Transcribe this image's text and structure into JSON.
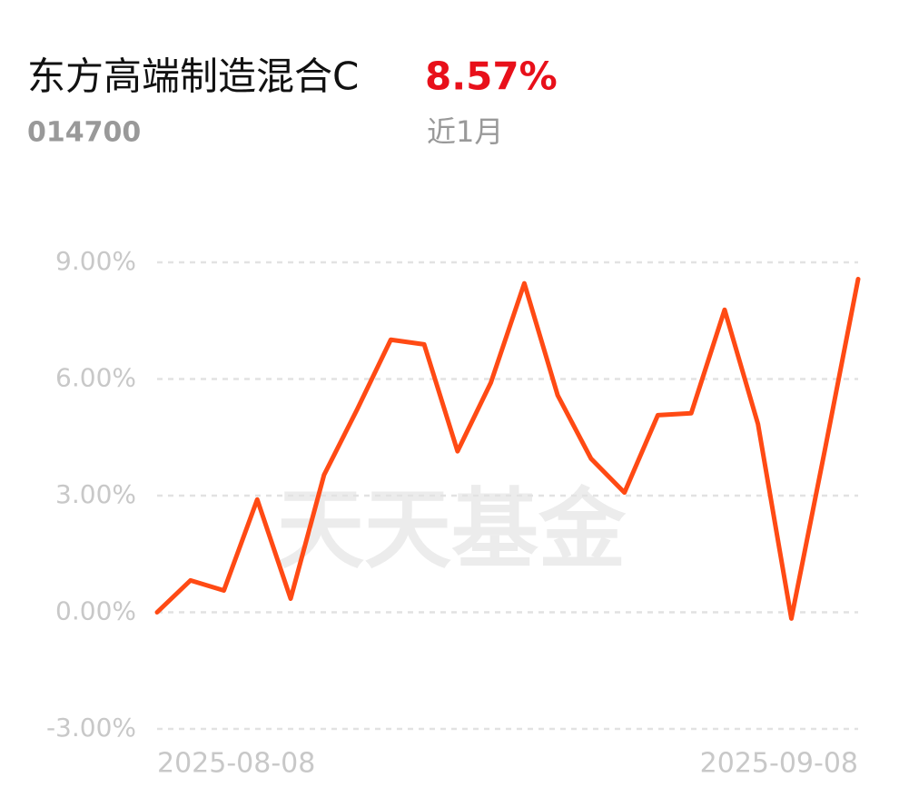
{
  "chart_data": {
    "type": "line",
    "title": "东方高端制造混合C",
    "return_label": "8.57%",
    "code": "014700",
    "period": "近1月",
    "watermark": "天天基金",
    "categories": [
      "2025-08-08",
      null,
      null,
      null,
      null,
      null,
      null,
      null,
      null,
      null,
      null,
      null,
      null,
      null,
      null,
      null,
      null,
      null,
      null,
      null,
      null,
      "2025-09-08"
    ],
    "series": [
      {
        "name": "东方高端制造混合C",
        "color": "#ff4a14",
        "values": [
          0,
          0.82,
          0.56,
          2.9,
          0.35,
          3.53,
          5.23,
          7.01,
          6.89,
          4.14,
          5.91,
          8.46,
          5.58,
          3.95,
          3.08,
          5.07,
          5.12,
          7.78,
          4.84,
          -0.16,
          4.16,
          8.57
        ]
      }
    ],
    "ylim": [
      -3,
      9
    ],
    "yticks": [
      {
        "value": 9,
        "label": "9.00%"
      },
      {
        "value": 6,
        "label": "6.00%"
      },
      {
        "value": 3,
        "label": "3.00%"
      },
      {
        "value": 0,
        "label": "0.00%"
      },
      {
        "value": -3,
        "label": "-3.00%"
      }
    ],
    "grid": true
  }
}
